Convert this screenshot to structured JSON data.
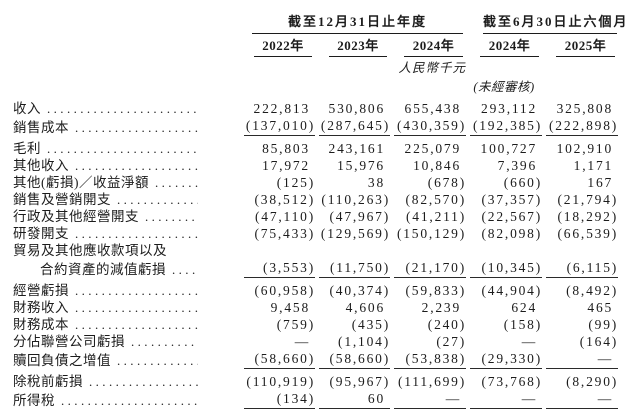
{
  "colors": {
    "background": "#ffffff",
    "text": "#1c1c1c",
    "rule_line": "#2a2a2a"
  },
  "table": {
    "group_headers": [
      {
        "label": "截至12月31日止年度",
        "colspan": 3
      },
      {
        "label": "截至6月30日止六個月",
        "colspan": 2
      }
    ],
    "year_headers": [
      "2022年",
      "2023年",
      "2024年",
      "2024年",
      "2025年"
    ],
    "unit_note": "人民幣千元",
    "unaudited_note": "(未經審核)",
    "rows": [
      {
        "label": "收入",
        "bold": true,
        "values": [
          "222,813",
          "530,806",
          "655,438",
          "293,112",
          "325,808"
        ]
      },
      {
        "label": "銷售成本",
        "values": [
          "(137,010)",
          "(287,645)",
          "(430,359)",
          "(192,385)",
          "(222,898)"
        ],
        "rule_below": true
      },
      {
        "label": "毛利",
        "bold": true,
        "values": [
          "85,803",
          "243,161",
          "225,079",
          "100,727",
          "102,910"
        ]
      },
      {
        "label": "其他收入",
        "values": [
          "17,972",
          "15,976",
          "10,846",
          "7,396",
          "1,171"
        ]
      },
      {
        "label": "其他(虧損)／收益淨額",
        "values": [
          "(125)",
          "38",
          "(678)",
          "(660)",
          "167"
        ]
      },
      {
        "label": "銷售及營銷開支",
        "values": [
          "(38,512)",
          "(110,263)",
          "(82,570)",
          "(37,357)",
          "(21,794)"
        ]
      },
      {
        "label": "行政及其他經營開支",
        "values": [
          "(47,110)",
          "(47,967)",
          "(41,211)",
          "(22,567)",
          "(18,292)"
        ]
      },
      {
        "label": "研發開支",
        "values": [
          "(75,433)",
          "(129,569)",
          "(150,129)",
          "(82,098)",
          "(66,539)"
        ]
      },
      {
        "label": "貿易及其他應收款項以及",
        "no_dots": true,
        "values": [
          "",
          "",
          "",
          "",
          ""
        ]
      },
      {
        "label": "合約資產的減值虧損",
        "indent": true,
        "values": [
          "(3,553)",
          "(11,750)",
          "(21,170)",
          "(10,345)",
          "(6,115)"
        ],
        "rule_below": true
      },
      {
        "label": "經營虧損",
        "bold": true,
        "values": [
          "(60,958)",
          "(40,374)",
          "(59,833)",
          "(44,904)",
          "(8,492)"
        ]
      },
      {
        "label": "財務收入",
        "values": [
          "9,458",
          "4,606",
          "2,239",
          "624",
          "465"
        ]
      },
      {
        "label": "財務成本",
        "values": [
          "(759)",
          "(435)",
          "(240)",
          "(158)",
          "(99)"
        ]
      },
      {
        "label": "分佔聯營公司虧損",
        "values": [
          "—",
          "(1,104)",
          "(27)",
          "—",
          "(164)"
        ]
      },
      {
        "label": "贖回負債之增值",
        "values": [
          "(58,660)",
          "(58,660)",
          "(53,838)",
          "(29,330)",
          "—"
        ],
        "rule_below": true
      },
      {
        "label": "除稅前虧損",
        "bold": true,
        "values": [
          "(110,919)",
          "(95,967)",
          "(111,699)",
          "(73,768)",
          "(8,290)"
        ]
      },
      {
        "label": "所得稅",
        "values": [
          "(134)",
          "60",
          "—",
          "—",
          "—"
        ],
        "rule_below": true
      }
    ]
  }
}
